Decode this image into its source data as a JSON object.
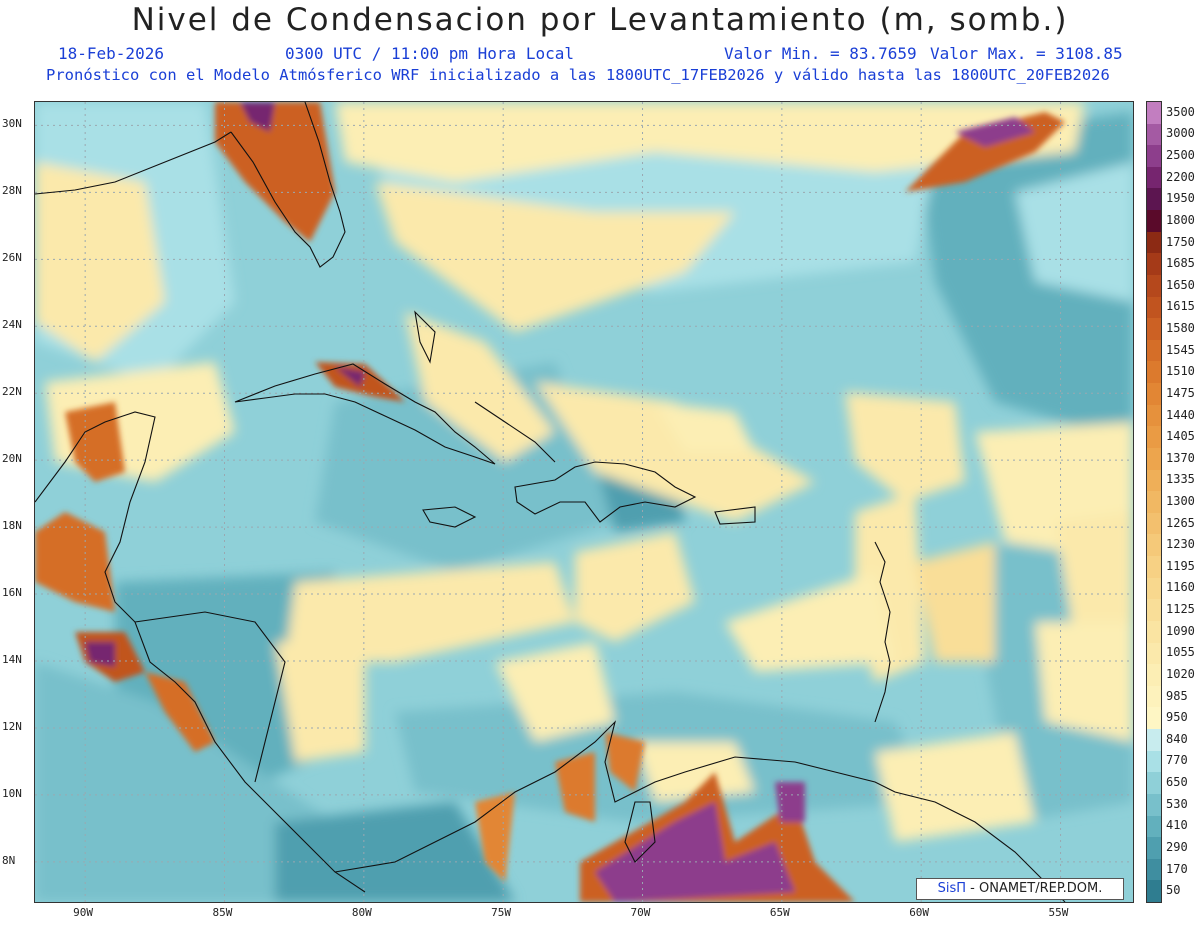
{
  "title": "Nivel de Condensacion por Levantamiento (m, somb.)",
  "header": {
    "date": "18-Feb-2026",
    "time": "0300 UTC / 11:00 pm Hora Local",
    "min_label": "Valor Min. = 83.7659",
    "max_label": "Valor Max. = 3108.85",
    "model_line": "Pronóstico con el Modelo Atmósferico WRF inicializado a las 1800UTC_17FEB2026 y válido hasta las  1800UTC_20FEB2026"
  },
  "axes": {
    "lat_labels": [
      "30N",
      "28N",
      "26N",
      "24N",
      "22N",
      "20N",
      "18N",
      "16N",
      "14N",
      "12N",
      "10N",
      "8N"
    ],
    "lon_labels": [
      "90W",
      "85W",
      "80W",
      "75W",
      "70W",
      "65W",
      "60W",
      "55W"
    ],
    "lat_range": [
      6.8,
      30.7
    ],
    "lon_range": [
      -91.8,
      -52.4
    ]
  },
  "colorbar": {
    "levels": [
      "3500",
      "3000",
      "2500",
      "2200",
      "1950",
      "1800",
      "1750",
      "1685",
      "1650",
      "1615",
      "1580",
      "1545",
      "1510",
      "1475",
      "1440",
      "1405",
      "1370",
      "1335",
      "1300",
      "1265",
      "1230",
      "1195",
      "1160",
      "1125",
      "1090",
      "1055",
      "1020",
      "985",
      "950",
      "840",
      "770",
      "650",
      "530",
      "410",
      "290",
      "170",
      "50"
    ],
    "colors": [
      "#c27ec0",
      "#a45aa3",
      "#8d3e8c",
      "#76256f",
      "#5c1550",
      "#5a0a2a",
      "#8c2a14",
      "#a53a18",
      "#b5481c",
      "#c1541f",
      "#cc6124",
      "#d56e28",
      "#dc7a2d",
      "#e28634",
      "#e6913c",
      "#ea9b44",
      "#eda54d",
      "#efaf58",
      "#f1b863",
      "#f3c06e",
      "#f5c979",
      "#f7d184",
      "#f8d88e",
      "#f9de98",
      "#fae4a2",
      "#fbe9ab",
      "#fceeb4",
      "#fdf2bc",
      "#fef6c4",
      "#c8ecee",
      "#a9e0e6",
      "#8fd0d8",
      "#78c0cb",
      "#62b0bd",
      "#4f9faf",
      "#3f8ea0",
      "#2f7d90"
    ]
  },
  "credit": {
    "brand": "SisΠ",
    "text": " - ONAMET/REP.DOM."
  }
}
